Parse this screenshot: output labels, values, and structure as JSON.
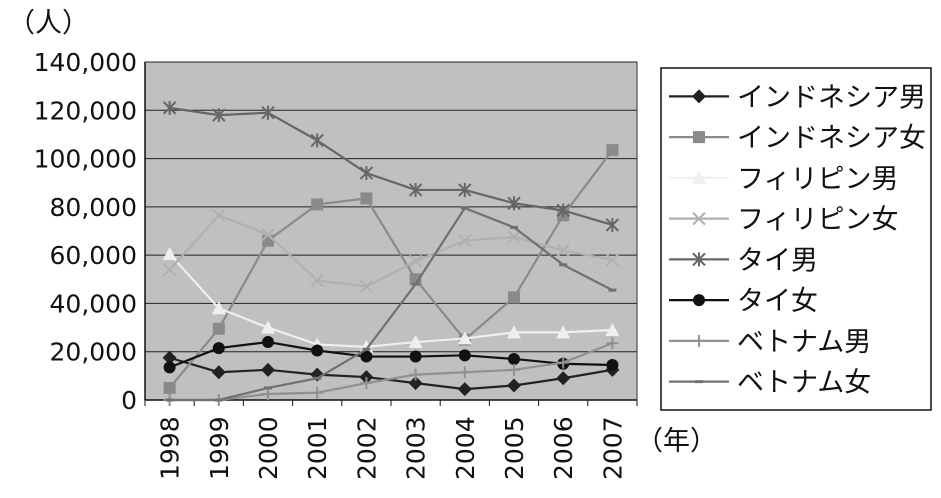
{
  "chart_data": {
    "type": "line",
    "y_unit_label": "（人）",
    "x_unit_label": "（年）",
    "x": [
      "1998",
      "1999",
      "2000",
      "2001",
      "2002",
      "2003",
      "2004",
      "2005",
      "2006",
      "2007"
    ],
    "ylim": [
      0,
      140000
    ],
    "y_ticks": [
      "0",
      "20,000",
      "40,000",
      "60,000",
      "80,000",
      "100,000",
      "120,000",
      "140,000"
    ],
    "grid": "horizontal",
    "plot_background": "#c0c0c0",
    "legend_position": "right",
    "series": [
      {
        "name": "インドネシア男",
        "marker": "diamond",
        "color": "#222222",
        "values": [
          17500,
          11500,
          12500,
          10500,
          9500,
          7000,
          4500,
          6000,
          9000,
          12500
        ]
      },
      {
        "name": "インドネシア女",
        "marker": "square",
        "color": "#8a8a8a",
        "values": [
          5000,
          29500,
          66000,
          81000,
          83500,
          50000,
          25000,
          42500,
          76500,
          103500
        ]
      },
      {
        "name": "フィリピン男",
        "marker": "triangle",
        "color": "#efefef",
        "values": [
          60500,
          38000,
          30000,
          23000,
          22000,
          24000,
          25500,
          28000,
          28000,
          29000
        ]
      },
      {
        "name": "フィリピン女",
        "marker": "x",
        "color": "#b0b0b0",
        "values": [
          54000,
          76500,
          68500,
          49500,
          47000,
          57500,
          66000,
          67500,
          62000,
          58000
        ]
      },
      {
        "name": "タイ男",
        "marker": "asterisk",
        "color": "#666666",
        "values": [
          121000,
          118000,
          119000,
          107500,
          94000,
          87000,
          87000,
          81500,
          78500,
          72500
        ]
      },
      {
        "name": "タイ女",
        "marker": "circle",
        "color": "#111111",
        "values": [
          13500,
          21500,
          24000,
          20500,
          18000,
          18000,
          18500,
          17000,
          15000,
          14500
        ]
      },
      {
        "name": "ベトナム男",
        "marker": "plus",
        "color": "#909090",
        "values": [
          0,
          0,
          2500,
          3000,
          7000,
          10500,
          11500,
          12500,
          15500,
          23500
        ]
      },
      {
        "name": "ベトナム女",
        "marker": "dash",
        "color": "#707070",
        "values": [
          0,
          0,
          5000,
          9000,
          21000,
          48000,
          79500,
          71500,
          56000,
          45500
        ]
      }
    ]
  }
}
